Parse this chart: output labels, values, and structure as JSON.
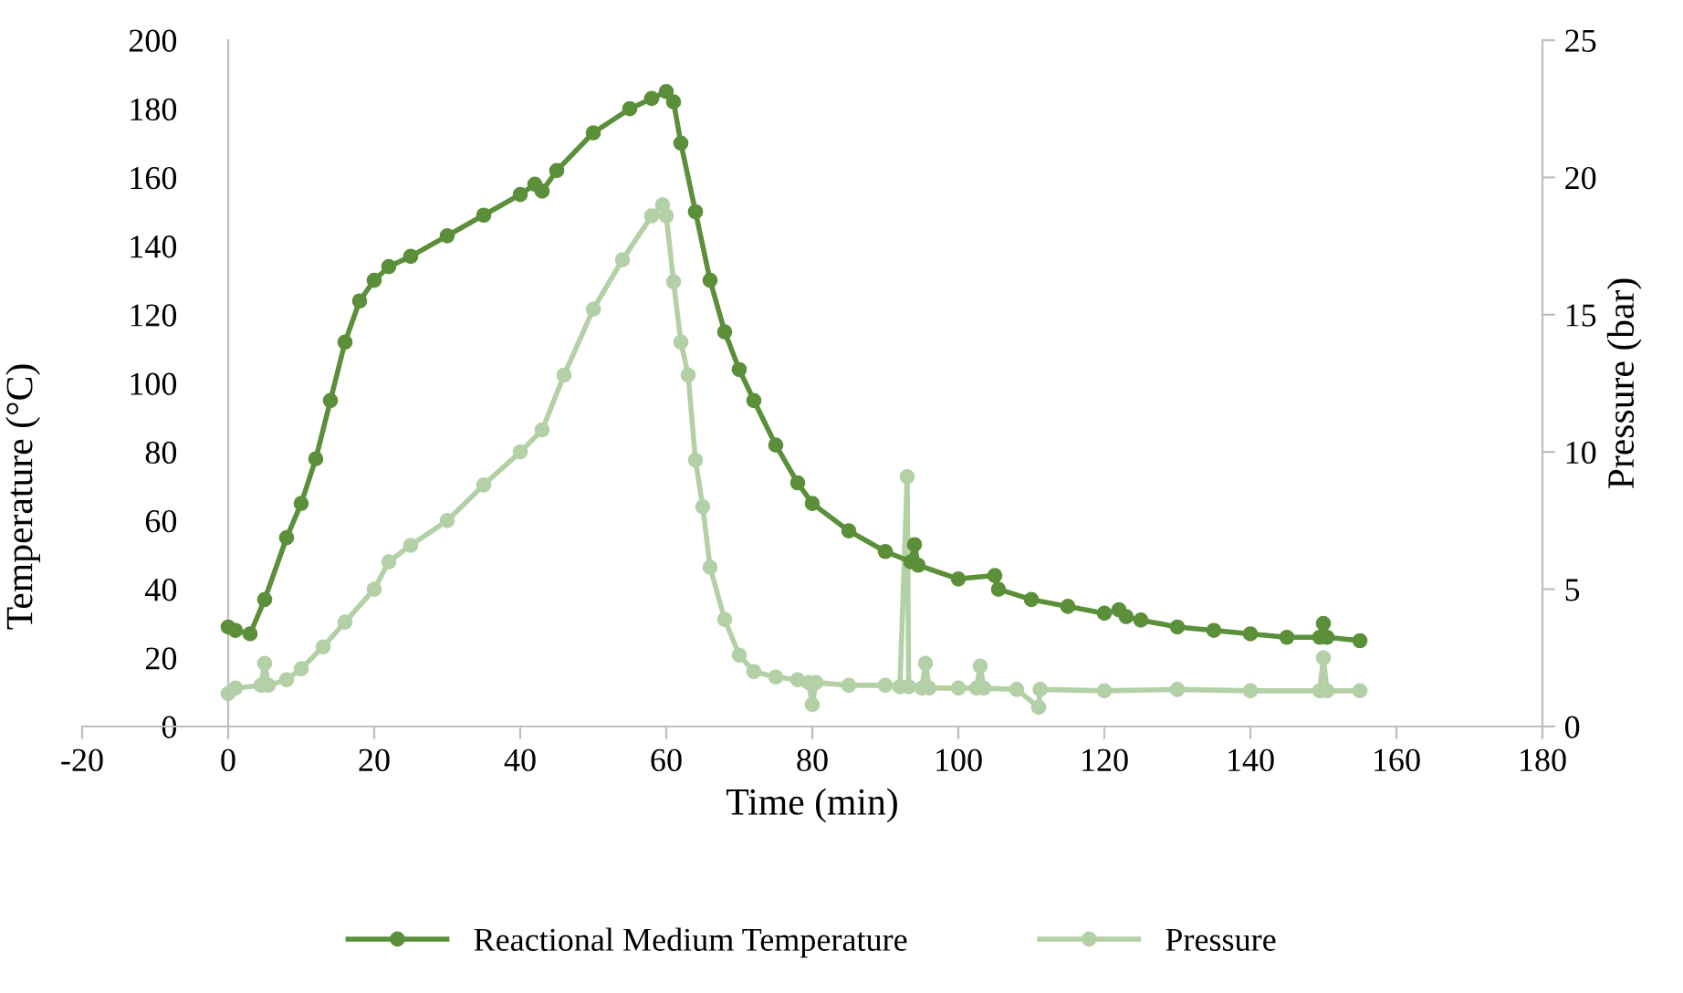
{
  "chart_data": {
    "type": "line",
    "xlabel": "Time (min)",
    "ylabel": "Temperature (°C)",
    "y2label": "Pressure (bar)",
    "xlim": [
      -20,
      180
    ],
    "xticks": [
      -20,
      0,
      20,
      40,
      60,
      80,
      100,
      120,
      140,
      160,
      180
    ],
    "ylim": [
      0,
      200
    ],
    "yticks": [
      0,
      20,
      40,
      60,
      80,
      100,
      120,
      140,
      160,
      180,
      200
    ],
    "y2lim": [
      0,
      25
    ],
    "y2ticks": [
      0,
      5,
      10,
      15,
      20,
      25
    ],
    "grid": false,
    "legend": "bottom",
    "marker": "circle",
    "line_style": "solid",
    "series": [
      {
        "name": "Reactional Medium Temperature",
        "color": "#5b8f3a",
        "x": [
          0,
          1,
          3,
          5,
          8,
          10,
          12,
          14,
          16,
          18,
          20,
          22,
          25,
          30,
          35,
          40,
          42,
          43,
          45,
          50,
          55,
          58,
          60,
          61,
          62,
          64,
          66,
          68,
          70,
          72,
          75,
          78,
          80,
          85,
          90,
          93.5,
          94,
          94.5,
          100,
          105,
          105.5,
          110,
          115,
          120,
          122,
          123,
          125,
          130,
          135,
          140,
          145,
          149.5,
          150,
          150.5,
          155
        ],
        "values": [
          29,
          28,
          27,
          37,
          55,
          65,
          78,
          95,
          112,
          124,
          130,
          134,
          137,
          143,
          149,
          155,
          158,
          156,
          162,
          173,
          180,
          183,
          185,
          182,
          170,
          150,
          130,
          115,
          104,
          95,
          82,
          71,
          65,
          57,
          51,
          48,
          53,
          47,
          43,
          44,
          40,
          37,
          35,
          33,
          34,
          32,
          31,
          29,
          28,
          27,
          26,
          26,
          30,
          26,
          25
        ]
      },
      {
        "name": "Pressure",
        "color": "#b3d0a6",
        "axis": "y2",
        "x": [
          0,
          1,
          4.5,
          5,
          5.5,
          8,
          10,
          13,
          16,
          20,
          22,
          25,
          30,
          35,
          40,
          43,
          46,
          50,
          54,
          58,
          59.5,
          60,
          61,
          62,
          63,
          64,
          65,
          66,
          68,
          70,
          72,
          75,
          78,
          79.5,
          80,
          80.5,
          85,
          90,
          92,
          93,
          93.2,
          95,
          95.5,
          96,
          100,
          102.5,
          103,
          103.5,
          108,
          111,
          111.2,
          120,
          130,
          140,
          149.5,
          150,
          150.5,
          155
        ],
        "values": [
          1.2,
          1.4,
          1.5,
          2.3,
          1.5,
          1.7,
          2.1,
          2.9,
          3.8,
          5.0,
          6.0,
          6.6,
          7.5,
          8.8,
          10.0,
          10.8,
          12.8,
          15.2,
          17.0,
          18.6,
          19.0,
          18.6,
          16.2,
          14.0,
          12.8,
          9.7,
          8.0,
          5.8,
          3.9,
          2.6,
          2.0,
          1.8,
          1.7,
          1.6,
          0.8,
          1.6,
          1.5,
          1.5,
          1.45,
          9.1,
          1.45,
          1.4,
          2.3,
          1.4,
          1.4,
          1.4,
          2.2,
          1.4,
          1.35,
          0.7,
          1.35,
          1.3,
          1.35,
          1.3,
          1.3,
          2.5,
          1.3,
          1.3
        ]
      }
    ]
  }
}
